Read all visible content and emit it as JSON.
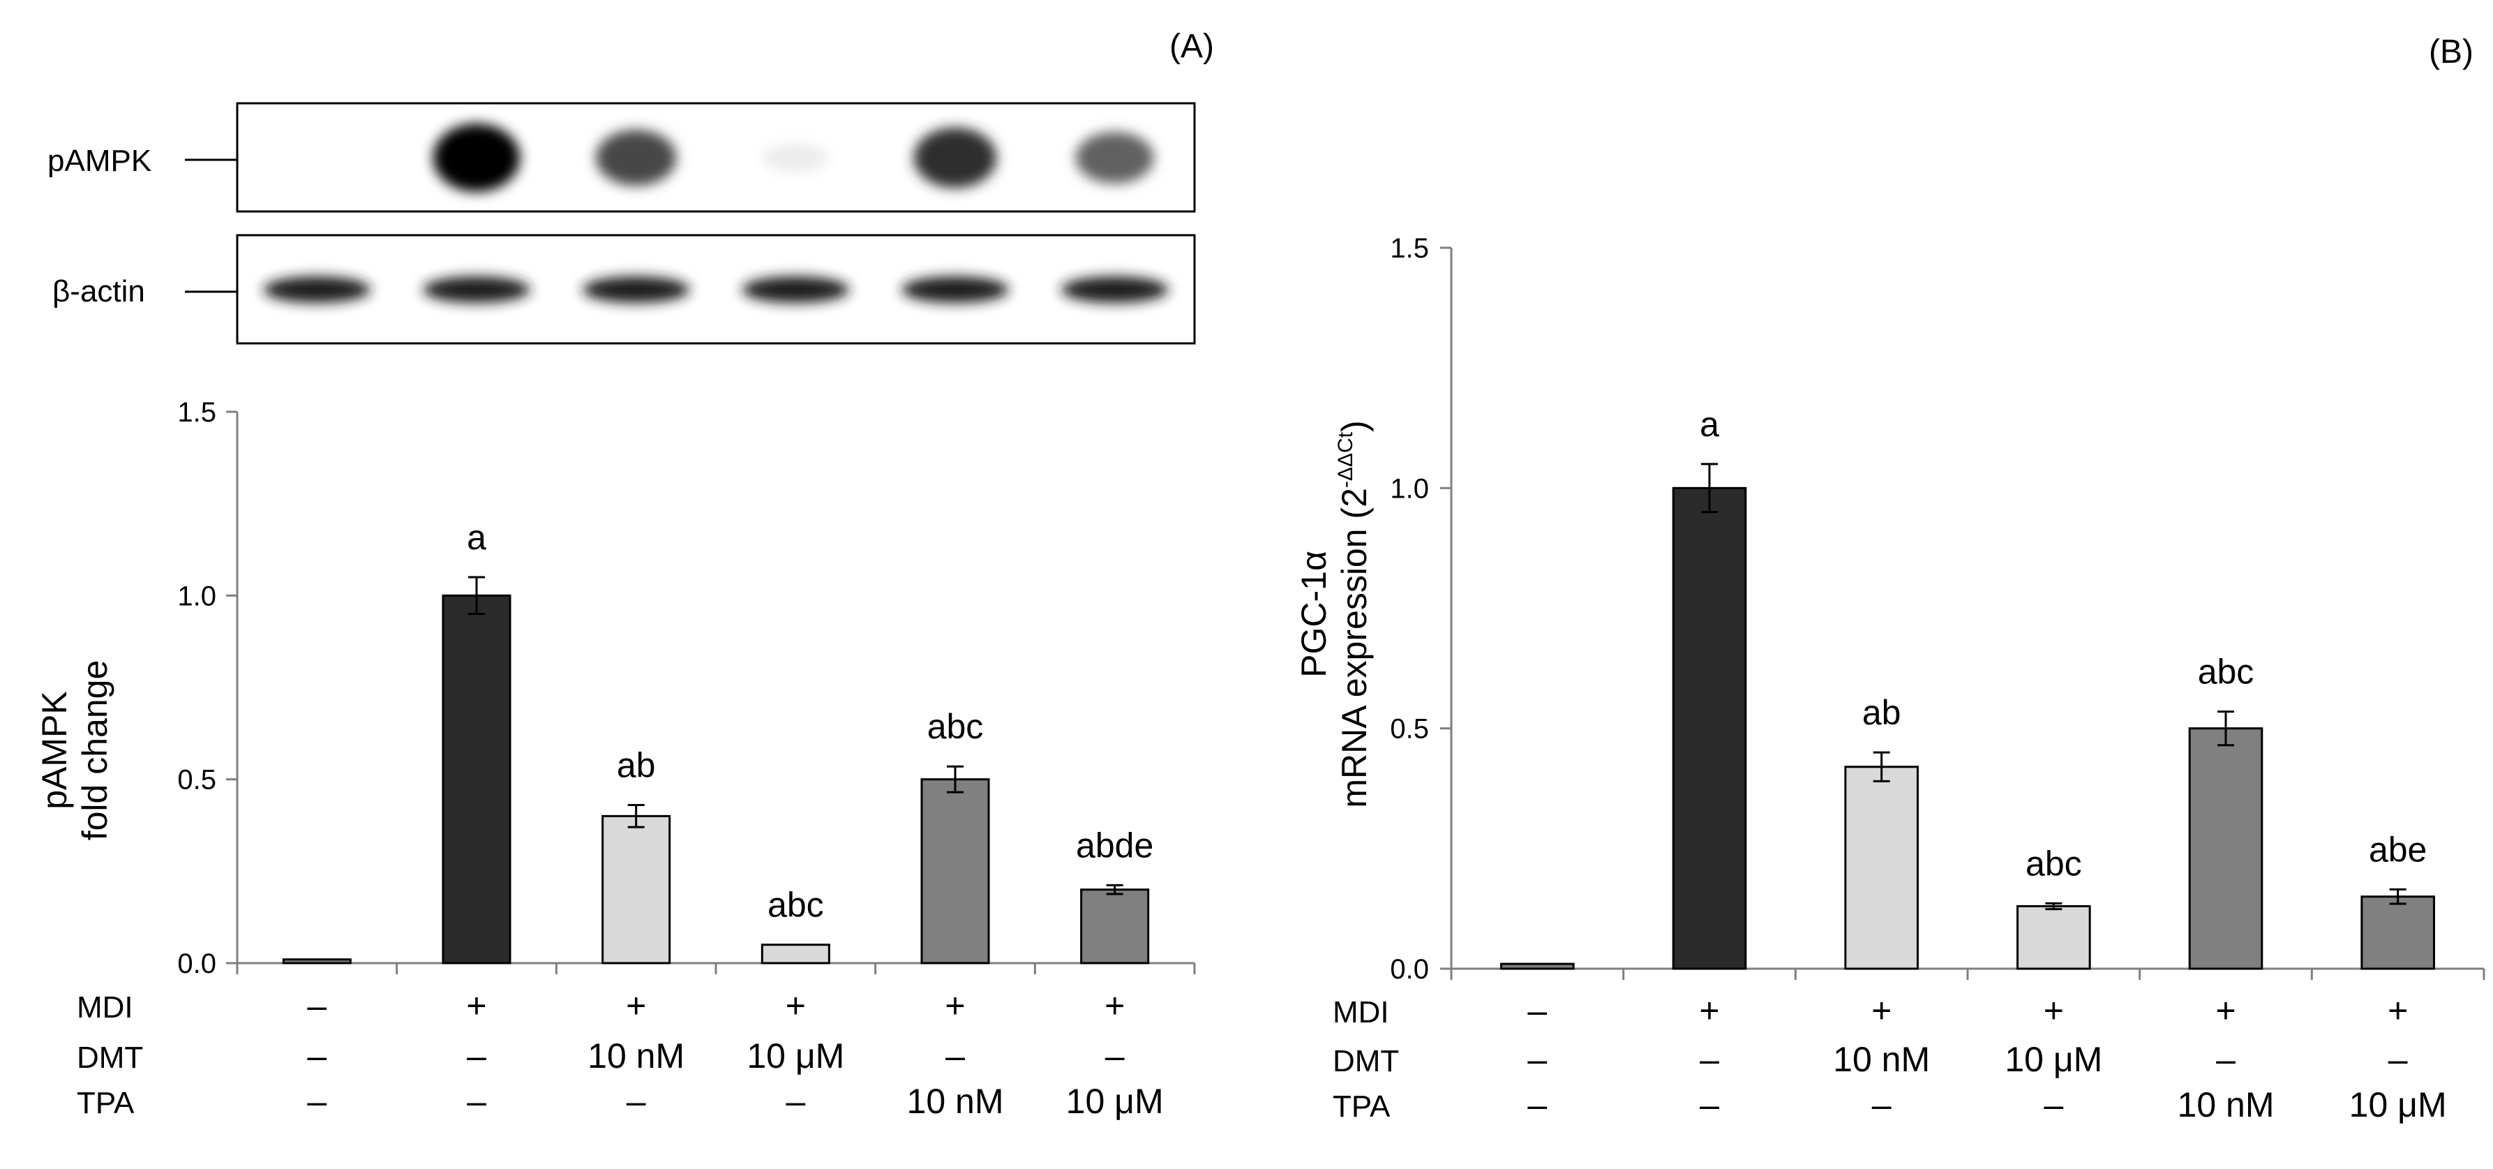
{
  "panels": [
    {
      "panel_label": "(A)",
      "blot": {
        "rows": [
          {
            "label": "pAMPK",
            "intensities": [
              0.0,
              1.0,
              0.72,
              0.08,
              0.82,
              0.62
            ]
          },
          {
            "label": "β-actin",
            "intensities": [
              0.9,
              0.88,
              0.88,
              0.88,
              0.88,
              0.88
            ]
          }
        ]
      },
      "ylabel": [
        "pAMPK",
        "fold change"
      ],
      "ytick_labels": [
        "0.0",
        "0.5",
        "1.0",
        "1.5"
      ],
      "conditions": [
        {
          "label": "MDI",
          "values": [
            "–",
            "+",
            "+",
            "+",
            "+",
            "+"
          ]
        },
        {
          "label": "DMT",
          "values": [
            "–",
            "–",
            "10 nM",
            "10 μM",
            "–",
            "–"
          ]
        },
        {
          "label": "TPA",
          "values": [
            "–",
            "–",
            "–",
            "–",
            "10 nM",
            "10 μM"
          ]
        }
      ]
    },
    {
      "panel_label": "(B)",
      "ylabel_line1": "PGC-1α",
      "ylabel_line2": "mRNA expression (2",
      "ylabel_sup": "-ΔΔCt",
      "ylabel_end": ")",
      "ytick_labels": [
        "0.0",
        "0.5",
        "1.0",
        "1.5"
      ],
      "conditions": [
        {
          "label": "MDI",
          "values": [
            "–",
            "+",
            "+",
            "+",
            "+",
            "+"
          ]
        },
        {
          "label": "DMT",
          "values": [
            "–",
            "–",
            "10 nM",
            "10 μM",
            "–",
            "–"
          ]
        },
        {
          "label": "TPA",
          "values": [
            "–",
            "–",
            "–",
            "–",
            "10 nM",
            "10 μM"
          ]
        }
      ]
    }
  ],
  "colors": {
    "black": "#2b2b2b",
    "light_gray": "#d9d9d9",
    "dark_gray": "#808080"
  },
  "chart_data": [
    {
      "type": "bar",
      "ylim": [
        0,
        1.5
      ],
      "yticks": [
        0,
        0.5,
        1.0,
        1.5
      ],
      "groups": 6,
      "values": [
        0.01,
        1.0,
        0.4,
        0.05,
        0.5,
        0.2
      ],
      "errors": [
        0.0,
        0.05,
        0.03,
        0.0,
        0.035,
        0.012
      ],
      "annotations": [
        "",
        "a",
        "ab",
        "abc",
        "abc",
        "abde"
      ],
      "bar_colors": [
        "#808080",
        "#2b2b2b",
        "#d9d9d9",
        "#d9d9d9",
        "#808080",
        "#808080"
      ]
    },
    {
      "type": "bar",
      "ylim": [
        0,
        1.5
      ],
      "yticks": [
        0,
        0.5,
        1.0,
        1.5
      ],
      "groups": 6,
      "values": [
        0.01,
        1.0,
        0.42,
        0.13,
        0.5,
        0.15
      ],
      "errors": [
        0.0,
        0.05,
        0.03,
        0.006,
        0.035,
        0.015
      ],
      "annotations": [
        "",
        "a",
        "ab",
        "abc",
        "abc",
        "abe"
      ],
      "bar_colors": [
        "#808080",
        "#2b2b2b",
        "#d9d9d9",
        "#d9d9d9",
        "#808080",
        "#808080"
      ]
    }
  ]
}
